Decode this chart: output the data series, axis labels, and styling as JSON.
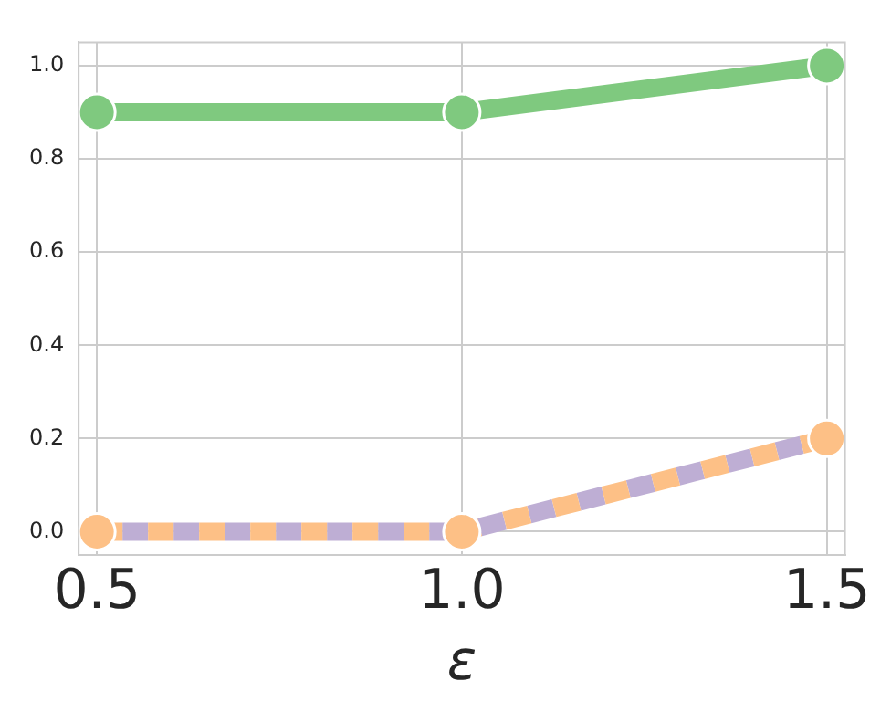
{
  "chart_data": {
    "type": "line",
    "xlabel": "ε",
    "x": [
      0.5,
      1.0,
      1.5
    ],
    "series": [
      {
        "color": "#7fc97f",
        "values": [
          0.9,
          0.9,
          1.0
        ],
        "line_style": "solid",
        "marker": "circle"
      },
      {
        "color": "#beaed4",
        "values": [
          0,
          0,
          0.2
        ],
        "line_style": "dashed",
        "marker": "none"
      },
      {
        "color": "#fdc086",
        "values": [
          0,
          0,
          0.2
        ],
        "line_style": "dashed",
        "marker": "circle"
      }
    ],
    "xlim": [
      0.475,
      1.525
    ],
    "xticks": [
      {
        "value": 0.5,
        "label": "0.5"
      },
      {
        "value": 1.0,
        "label": "1.0"
      },
      {
        "value": 1.5,
        "label": "1.5"
      }
    ],
    "ylim": [
      -0.05,
      1.05
    ],
    "yticks": [
      {
        "value": 0,
        "label": "0.0"
      },
      {
        "value": 0.2,
        "label": "0.2"
      },
      {
        "value": 0.4,
        "label": "0.4"
      },
      {
        "value": 0.6,
        "label": "0.6"
      },
      {
        "value": 0.8,
        "label": "0.8"
      },
      {
        "value": 1.0,
        "label": "1.0"
      }
    ],
    "grid": true,
    "legend": false
  }
}
